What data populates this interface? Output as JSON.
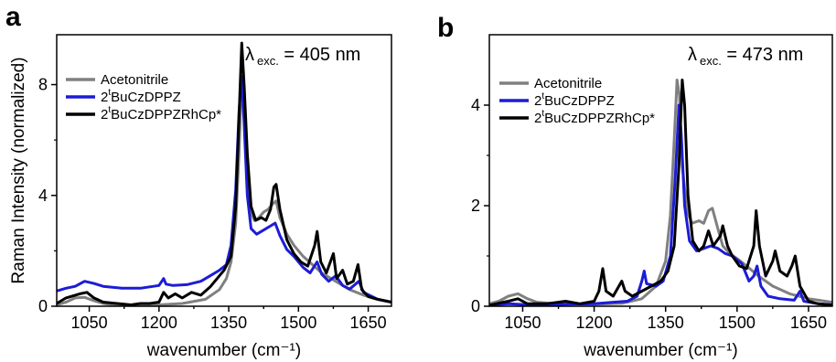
{
  "chart_data": [
    {
      "panel_label": "a",
      "type": "line",
      "annotation": {
        "lambda": "λ",
        "sub": "exc.",
        "rest": " = 405 nm"
      },
      "xlabel": "wavenumber (cm⁻¹)",
      "ylabel": "Raman Intensity (normalized)",
      "xlim": [
        980,
        1700
      ],
      "ylim": [
        0,
        9.8
      ],
      "xticks": [
        1050,
        1200,
        1350,
        1500,
        1650
      ],
      "yticks": [
        0,
        4,
        8
      ],
      "legend": {
        "placement": "top-left",
        "entries": [
          {
            "base": "Acetonitrile",
            "sup": "",
            "tail": ""
          },
          {
            "base": "2",
            "sup": "t",
            "tail": "BuCzDPPZ"
          },
          {
            "base": "2",
            "sup": "t",
            "tail": "BuCzDPPZRhCp*"
          }
        ]
      },
      "series": [
        {
          "color": "#808080",
          "points": [
            [
              980,
              0.05
            ],
            [
              1000,
              0.15
            ],
            [
              1020,
              0.3
            ],
            [
              1040,
              0.32
            ],
            [
              1060,
              0.2
            ],
            [
              1080,
              0.1
            ],
            [
              1100,
              0.06
            ],
            [
              1150,
              0.04
            ],
            [
              1200,
              0.05
            ],
            [
              1250,
              0.1
            ],
            [
              1300,
              0.25
            ],
            [
              1330,
              0.6
            ],
            [
              1345,
              1.0
            ],
            [
              1355,
              1.6
            ],
            [
              1365,
              3.0
            ],
            [
              1372,
              5.5
            ],
            [
              1378,
              8.3
            ],
            [
              1382,
              7.5
            ],
            [
              1388,
              5.0
            ],
            [
              1395,
              3.5
            ],
            [
              1405,
              3.1
            ],
            [
              1415,
              3.2
            ],
            [
              1425,
              3.4
            ],
            [
              1435,
              3.5
            ],
            [
              1445,
              3.7
            ],
            [
              1452,
              3.8
            ],
            [
              1460,
              3.2
            ],
            [
              1475,
              2.6
            ],
            [
              1490,
              2.2
            ],
            [
              1510,
              1.8
            ],
            [
              1530,
              1.5
            ],
            [
              1550,
              1.2
            ],
            [
              1580,
              0.9
            ],
            [
              1610,
              0.6
            ],
            [
              1640,
              0.4
            ],
            [
              1670,
              0.25
            ],
            [
              1700,
              0.15
            ]
          ]
        },
        {
          "color": "#1c1cd6",
          "points": [
            [
              980,
              0.55
            ],
            [
              1000,
              0.65
            ],
            [
              1020,
              0.72
            ],
            [
              1040,
              0.9
            ],
            [
              1060,
              0.82
            ],
            [
              1080,
              0.72
            ],
            [
              1120,
              0.65
            ],
            [
              1160,
              0.65
            ],
            [
              1200,
              0.75
            ],
            [
              1210,
              1.0
            ],
            [
              1215,
              0.8
            ],
            [
              1230,
              0.75
            ],
            [
              1260,
              0.78
            ],
            [
              1290,
              0.9
            ],
            [
              1310,
              1.1
            ],
            [
              1330,
              1.3
            ],
            [
              1345,
              1.5
            ],
            [
              1355,
              2.2
            ],
            [
              1365,
              4.2
            ],
            [
              1372,
              7.0
            ],
            [
              1378,
              8.3
            ],
            [
              1383,
              6.6
            ],
            [
              1390,
              4.0
            ],
            [
              1398,
              2.8
            ],
            [
              1410,
              2.6
            ],
            [
              1425,
              2.75
            ],
            [
              1440,
              2.9
            ],
            [
              1450,
              3.0
            ],
            [
              1460,
              2.55
            ],
            [
              1475,
              2.05
            ],
            [
              1490,
              1.8
            ],
            [
              1510,
              1.4
            ],
            [
              1525,
              1.2
            ],
            [
              1540,
              1.6
            ],
            [
              1550,
              1.15
            ],
            [
              1565,
              0.9
            ],
            [
              1580,
              1.1
            ],
            [
              1595,
              0.75
            ],
            [
              1610,
              0.62
            ],
            [
              1630,
              0.9
            ],
            [
              1640,
              0.5
            ],
            [
              1670,
              0.25
            ],
            [
              1700,
              0.15
            ]
          ]
        },
        {
          "color": "#000000",
          "points": [
            [
              980,
              0.1
            ],
            [
              1000,
              0.3
            ],
            [
              1020,
              0.4
            ],
            [
              1030,
              0.45
            ],
            [
              1045,
              0.5
            ],
            [
              1060,
              0.3
            ],
            [
              1080,
              0.15
            ],
            [
              1110,
              0.1
            ],
            [
              1140,
              0.05
            ],
            [
              1160,
              0.1
            ],
            [
              1180,
              0.1
            ],
            [
              1200,
              0.15
            ],
            [
              1210,
              0.5
            ],
            [
              1220,
              0.3
            ],
            [
              1235,
              0.45
            ],
            [
              1250,
              0.3
            ],
            [
              1270,
              0.5
            ],
            [
              1290,
              0.4
            ],
            [
              1310,
              0.7
            ],
            [
              1325,
              1.0
            ],
            [
              1340,
              1.3
            ],
            [
              1355,
              1.8
            ],
            [
              1365,
              3.6
            ],
            [
              1372,
              6.8
            ],
            [
              1378,
              9.5
            ],
            [
              1383,
              8.0
            ],
            [
              1390,
              5.5
            ],
            [
              1398,
              3.6
            ],
            [
              1408,
              3.1
            ],
            [
              1420,
              3.2
            ],
            [
              1430,
              3.1
            ],
            [
              1440,
              3.5
            ],
            [
              1447,
              4.3
            ],
            [
              1452,
              4.4
            ],
            [
              1460,
              3.5
            ],
            [
              1475,
              2.4
            ],
            [
              1490,
              1.9
            ],
            [
              1505,
              1.6
            ],
            [
              1520,
              1.45
            ],
            [
              1535,
              2.2
            ],
            [
              1540,
              2.7
            ],
            [
              1548,
              1.6
            ],
            [
              1560,
              1.2
            ],
            [
              1575,
              1.9
            ],
            [
              1582,
              1.0
            ],
            [
              1595,
              1.3
            ],
            [
              1605,
              0.8
            ],
            [
              1618,
              0.9
            ],
            [
              1628,
              1.5
            ],
            [
              1636,
              0.6
            ],
            [
              1650,
              0.35
            ],
            [
              1670,
              0.25
            ],
            [
              1700,
              0.15
            ]
          ]
        }
      ]
    },
    {
      "panel_label": "b",
      "type": "line",
      "annotation": {
        "lambda": "λ",
        "sub": "exc.",
        "rest": " = 473 nm"
      },
      "xlabel": "wavenumber (cm⁻¹)",
      "ylabel": "",
      "xlim": [
        980,
        1700
      ],
      "ylim": [
        0,
        5.4
      ],
      "xticks": [
        1050,
        1200,
        1350,
        1500,
        1650
      ],
      "yticks": [
        0,
        2,
        4
      ],
      "legend": {
        "placement": "top-left",
        "entries": [
          {
            "base": "Acetonitrile",
            "sup": "",
            "tail": ""
          },
          {
            "base": "2",
            "sup": "t",
            "tail": "BuCzDPPZ"
          },
          {
            "base": "2",
            "sup": "t",
            "tail": "BuCzDPPZRhCp*"
          }
        ]
      },
      "series": [
        {
          "color": "#808080",
          "points": [
            [
              980,
              0.05
            ],
            [
              1000,
              0.1
            ],
            [
              1020,
              0.2
            ],
            [
              1040,
              0.25
            ],
            [
              1060,
              0.15
            ],
            [
              1080,
              0.08
            ],
            [
              1120,
              0.05
            ],
            [
              1200,
              0.04
            ],
            [
              1260,
              0.06
            ],
            [
              1300,
              0.15
            ],
            [
              1330,
              0.4
            ],
            [
              1350,
              0.9
            ],
            [
              1360,
              1.8
            ],
            [
              1368,
              3.3
            ],
            [
              1374,
              4.5
            ],
            [
              1379,
              4.2
            ],
            [
              1385,
              2.8
            ],
            [
              1395,
              1.9
            ],
            [
              1405,
              1.65
            ],
            [
              1420,
              1.7
            ],
            [
              1430,
              1.65
            ],
            [
              1440,
              1.9
            ],
            [
              1448,
              1.95
            ],
            [
              1458,
              1.6
            ],
            [
              1470,
              1.2
            ],
            [
              1485,
              1.05
            ],
            [
              1500,
              0.95
            ],
            [
              1520,
              0.8
            ],
            [
              1545,
              0.6
            ],
            [
              1575,
              0.4
            ],
            [
              1610,
              0.25
            ],
            [
              1650,
              0.15
            ],
            [
              1700,
              0.08
            ]
          ]
        },
        {
          "color": "#1c1cd6",
          "points": [
            [
              980,
              0.02
            ],
            [
              1020,
              0.05
            ],
            [
              1060,
              0.03
            ],
            [
              1100,
              0.03
            ],
            [
              1150,
              0.04
            ],
            [
              1200,
              0.05
            ],
            [
              1240,
              0.08
            ],
            [
              1270,
              0.1
            ],
            [
              1290,
              0.2
            ],
            [
              1300,
              0.5
            ],
            [
              1305,
              0.7
            ],
            [
              1310,
              0.45
            ],
            [
              1330,
              0.4
            ],
            [
              1345,
              0.5
            ],
            [
              1360,
              1.0
            ],
            [
              1370,
              2.5
            ],
            [
              1378,
              4.0
            ],
            [
              1383,
              3.4
            ],
            [
              1390,
              2.0
            ],
            [
              1400,
              1.3
            ],
            [
              1415,
              1.1
            ],
            [
              1430,
              1.15
            ],
            [
              1445,
              1.2
            ],
            [
              1460,
              1.15
            ],
            [
              1475,
              1.05
            ],
            [
              1490,
              1.0
            ],
            [
              1510,
              0.85
            ],
            [
              1525,
              0.5
            ],
            [
              1535,
              0.6
            ],
            [
              1542,
              0.8
            ],
            [
              1550,
              0.4
            ],
            [
              1565,
              0.2
            ],
            [
              1590,
              0.15
            ],
            [
              1620,
              0.12
            ],
            [
              1632,
              0.3
            ],
            [
              1640,
              0.1
            ],
            [
              1670,
              0.05
            ],
            [
              1700,
              0.03
            ]
          ]
        },
        {
          "color": "#000000",
          "points": [
            [
              980,
              0.02
            ],
            [
              1020,
              0.1
            ],
            [
              1040,
              0.15
            ],
            [
              1060,
              0.05
            ],
            [
              1100,
              0.05
            ],
            [
              1140,
              0.1
            ],
            [
              1170,
              0.05
            ],
            [
              1200,
              0.1
            ],
            [
              1210,
              0.3
            ],
            [
              1218,
              0.75
            ],
            [
              1225,
              0.3
            ],
            [
              1240,
              0.2
            ],
            [
              1258,
              0.5
            ],
            [
              1265,
              0.3
            ],
            [
              1280,
              0.2
            ],
            [
              1300,
              0.3
            ],
            [
              1320,
              0.4
            ],
            [
              1340,
              0.5
            ],
            [
              1355,
              0.7
            ],
            [
              1368,
              1.2
            ],
            [
              1378,
              2.8
            ],
            [
              1385,
              4.5
            ],
            [
              1390,
              4.0
            ],
            [
              1397,
              2.2
            ],
            [
              1407,
              1.3
            ],
            [
              1420,
              1.1
            ],
            [
              1430,
              1.2
            ],
            [
              1440,
              1.5
            ],
            [
              1450,
              1.2
            ],
            [
              1465,
              1.4
            ],
            [
              1470,
              1.6
            ],
            [
              1480,
              1.2
            ],
            [
              1490,
              1.0
            ],
            [
              1505,
              0.8
            ],
            [
              1520,
              0.75
            ],
            [
              1535,
              1.2
            ],
            [
              1540,
              1.9
            ],
            [
              1547,
              1.2
            ],
            [
              1560,
              0.6
            ],
            [
              1575,
              0.9
            ],
            [
              1580,
              1.1
            ],
            [
              1590,
              0.7
            ],
            [
              1605,
              0.6
            ],
            [
              1615,
              0.8
            ],
            [
              1622,
              1.0
            ],
            [
              1632,
              0.4
            ],
            [
              1650,
              0.1
            ],
            [
              1670,
              0.05
            ],
            [
              1700,
              0.02
            ]
          ]
        }
      ]
    }
  ]
}
